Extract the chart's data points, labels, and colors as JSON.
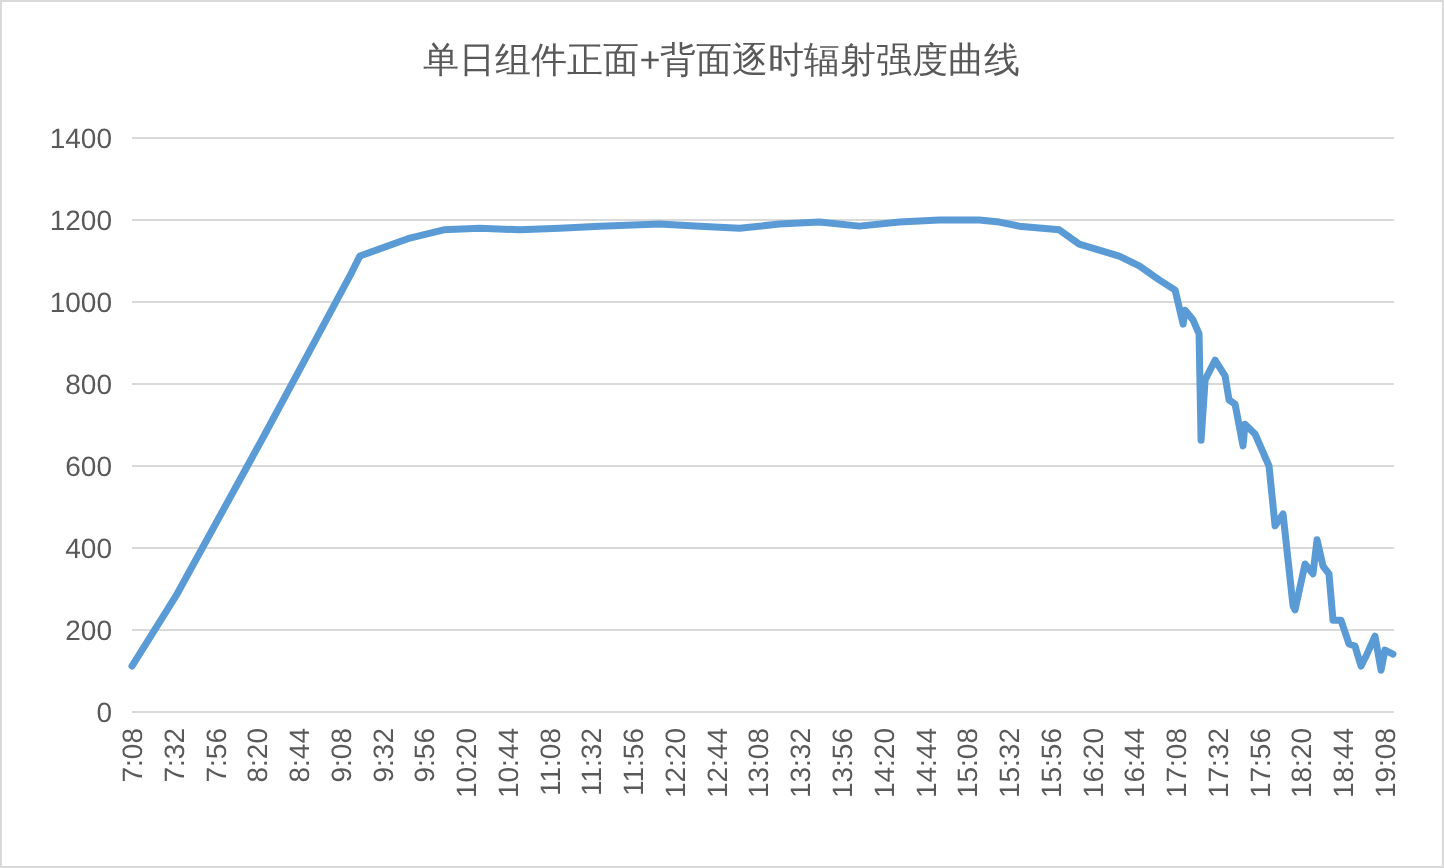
{
  "chart_data": {
    "type": "line",
    "title": "单日组件正面+背面逐时辐射强度曲线",
    "x": [
      7.133,
      7.554,
      7.975,
      8.396,
      8.818,
      9.239,
      9.315,
      9.794,
      10.119,
      10.464,
      10.846,
      11.229,
      11.612,
      12.186,
      12.569,
      12.952,
      13.334,
      13.717,
      14.1,
      14.483,
      14.865,
      15.248,
      15.44,
      15.631,
      16.014,
      16.205,
      16.588,
      16.78,
      16.971,
      17.124,
      17.2,
      17.219,
      17.296,
      17.353,
      17.372,
      17.411,
      17.506,
      17.602,
      17.64,
      17.698,
      17.774,
      17.793,
      17.889,
      18.023,
      18.081,
      18.157,
      18.253,
      18.272,
      18.368,
      18.444,
      18.483,
      18.54,
      18.597,
      18.636,
      18.712,
      18.789,
      18.846,
      18.904,
      18.961,
      19.038,
      19.096,
      19.133,
      19.21
    ],
    "series": [
      {
        "color": "#5b9bd5",
        "values": [
          112,
          283,
          478,
          673,
          873,
          1073,
          1112,
          1156,
          1176,
          1180,
          1176,
          1180,
          1185,
          1190,
          1185,
          1180,
          1190,
          1195,
          1185,
          1195,
          1200,
          1200,
          1195,
          1185,
          1176,
          1141,
          1112,
          1088,
          1054,
          1029,
          946,
          980,
          956,
          922,
          663,
          810,
          858,
          820,
          761,
          751,
          649,
          702,
          678,
          600,
          454,
          483,
          259,
          249,
          361,
          337,
          420,
          356,
          337,
          224,
          224,
          166,
          161,
          112,
          141,
          185,
          102,
          151,
          141
        ]
      }
    ],
    "xlim": [
      7.133,
      19.22
    ],
    "ylim": [
      0,
      1400
    ],
    "yticks": [
      0,
      200,
      400,
      600,
      800,
      1000,
      1200,
      1400
    ],
    "xticks": [
      {
        "value": 7.133,
        "label": "7:08"
      },
      {
        "value": 7.533,
        "label": "7:32"
      },
      {
        "value": 7.933,
        "label": "7:56"
      },
      {
        "value": 8.333,
        "label": "8:20"
      },
      {
        "value": 8.733,
        "label": "8:44"
      },
      {
        "value": 9.133,
        "label": "9:08"
      },
      {
        "value": 9.533,
        "label": "9:32"
      },
      {
        "value": 9.933,
        "label": "9:56"
      },
      {
        "value": 10.333,
        "label": "10:20"
      },
      {
        "value": 10.733,
        "label": "10:44"
      },
      {
        "value": 11.133,
        "label": "11:08"
      },
      {
        "value": 11.533,
        "label": "11:32"
      },
      {
        "value": 11.933,
        "label": "11:56"
      },
      {
        "value": 12.333,
        "label": "12:20"
      },
      {
        "value": 12.733,
        "label": "12:44"
      },
      {
        "value": 13.133,
        "label": "13:08"
      },
      {
        "value": 13.533,
        "label": "13:32"
      },
      {
        "value": 13.933,
        "label": "13:56"
      },
      {
        "value": 14.333,
        "label": "14:20"
      },
      {
        "value": 14.733,
        "label": "14:44"
      },
      {
        "value": 15.133,
        "label": "15:08"
      },
      {
        "value": 15.533,
        "label": "15:32"
      },
      {
        "value": 15.933,
        "label": "15:56"
      },
      {
        "value": 16.333,
        "label": "16:20"
      },
      {
        "value": 16.733,
        "label": "16:44"
      },
      {
        "value": 17.133,
        "label": "17:08"
      },
      {
        "value": 17.533,
        "label": "17:32"
      },
      {
        "value": 17.933,
        "label": "17:56"
      },
      {
        "value": 18.333,
        "label": "18:20"
      },
      {
        "value": 18.733,
        "label": "18:44"
      },
      {
        "value": 19.133,
        "label": "19:08"
      }
    ],
    "grid": "y",
    "marker": "none",
    "line_style": "solid"
  }
}
